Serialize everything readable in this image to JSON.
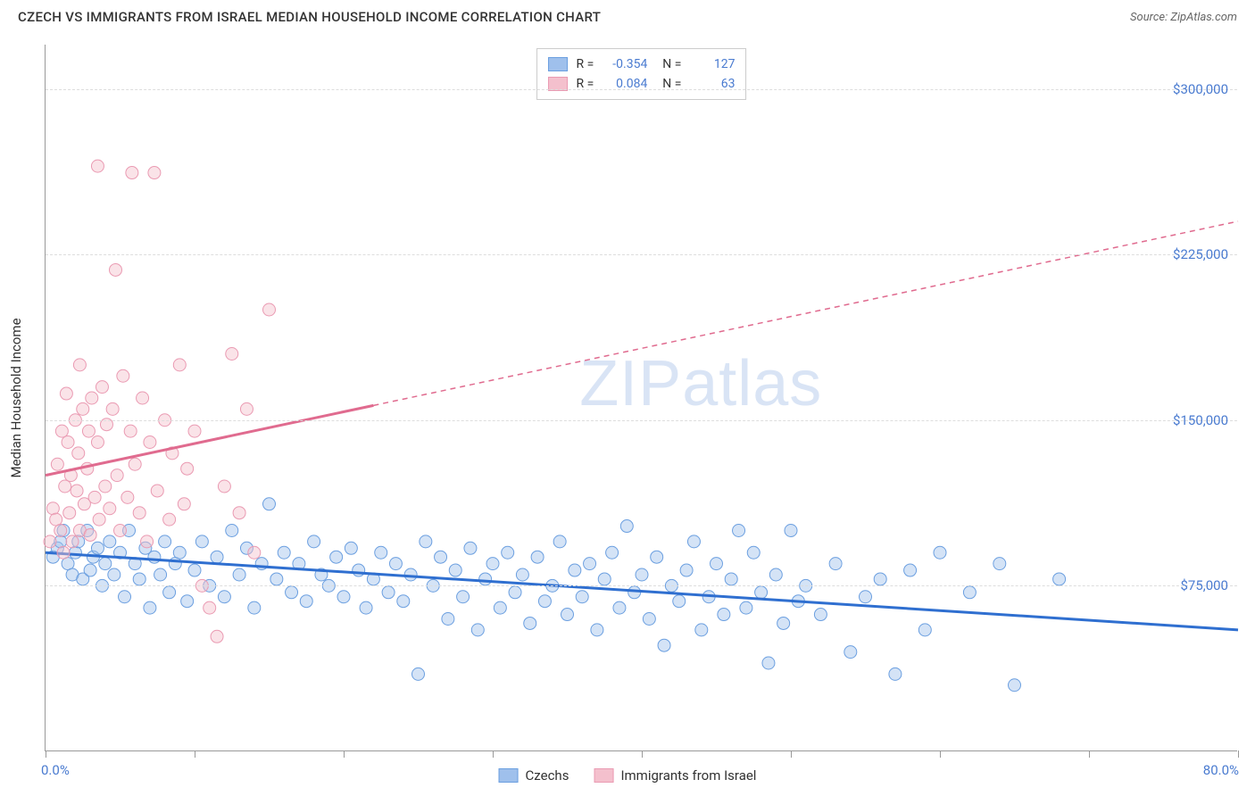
{
  "title": "CZECH VS IMMIGRANTS FROM ISRAEL MEDIAN HOUSEHOLD INCOME CORRELATION CHART",
  "source_label": "Source: ZipAtlas.com",
  "yaxis_title": "Median Household Income",
  "watermark": "ZIPatlas",
  "chart": {
    "type": "scatter",
    "xlim": [
      0,
      80
    ],
    "ylim": [
      0,
      320000
    ],
    "xlabel_min": "0.0%",
    "xlabel_max": "80.0%",
    "xtick_positions": [
      0,
      10,
      20,
      30,
      40,
      50,
      60,
      70,
      80
    ],
    "yticks": [
      {
        "v": 75000,
        "label": "$75,000"
      },
      {
        "v": 150000,
        "label": "$150,000"
      },
      {
        "v": 225000,
        "label": "$225,000"
      },
      {
        "v": 300000,
        "label": "$300,000"
      }
    ],
    "grid_color": "#dddddd",
    "background_color": "#ffffff",
    "marker_radius": 7,
    "marker_opacity": 0.45,
    "line_width": 3,
    "series": [
      {
        "name": "Czechs",
        "fill_color": "#9fc0ec",
        "stroke_color": "#6b9fe0",
        "line_color": "#2f6fd0",
        "R": "-0.354",
        "N": "127",
        "regression": {
          "x1": 0,
          "y1": 90000,
          "x2": 80,
          "y2": 55000
        },
        "points": [
          [
            0.5,
            88000
          ],
          [
            0.8,
            92000
          ],
          [
            1.0,
            95000
          ],
          [
            1.2,
            100000
          ],
          [
            1.5,
            85000
          ],
          [
            1.8,
            80000
          ],
          [
            2.0,
            90000
          ],
          [
            2.2,
            95000
          ],
          [
            2.5,
            78000
          ],
          [
            2.8,
            100000
          ],
          [
            3.0,
            82000
          ],
          [
            3.2,
            88000
          ],
          [
            3.5,
            92000
          ],
          [
            3.8,
            75000
          ],
          [
            4.0,
            85000
          ],
          [
            4.3,
            95000
          ],
          [
            4.6,
            80000
          ],
          [
            5.0,
            90000
          ],
          [
            5.3,
            70000
          ],
          [
            5.6,
            100000
          ],
          [
            6.0,
            85000
          ],
          [
            6.3,
            78000
          ],
          [
            6.7,
            92000
          ],
          [
            7.0,
            65000
          ],
          [
            7.3,
            88000
          ],
          [
            7.7,
            80000
          ],
          [
            8.0,
            95000
          ],
          [
            8.3,
            72000
          ],
          [
            8.7,
            85000
          ],
          [
            9.0,
            90000
          ],
          [
            9.5,
            68000
          ],
          [
            10.0,
            82000
          ],
          [
            10.5,
            95000
          ],
          [
            11.0,
            75000
          ],
          [
            11.5,
            88000
          ],
          [
            12.0,
            70000
          ],
          [
            12.5,
            100000
          ],
          [
            13.0,
            80000
          ],
          [
            13.5,
            92000
          ],
          [
            14.0,
            65000
          ],
          [
            14.5,
            85000
          ],
          [
            15.0,
            112000
          ],
          [
            15.5,
            78000
          ],
          [
            16.0,
            90000
          ],
          [
            16.5,
            72000
          ],
          [
            17.0,
            85000
          ],
          [
            17.5,
            68000
          ],
          [
            18.0,
            95000
          ],
          [
            18.5,
            80000
          ],
          [
            19.0,
            75000
          ],
          [
            19.5,
            88000
          ],
          [
            20.0,
            70000
          ],
          [
            20.5,
            92000
          ],
          [
            21.0,
            82000
          ],
          [
            21.5,
            65000
          ],
          [
            22.0,
            78000
          ],
          [
            22.5,
            90000
          ],
          [
            23.0,
            72000
          ],
          [
            23.5,
            85000
          ],
          [
            24.0,
            68000
          ],
          [
            24.5,
            80000
          ],
          [
            25.0,
            35000
          ],
          [
            25.5,
            95000
          ],
          [
            26.0,
            75000
          ],
          [
            26.5,
            88000
          ],
          [
            27.0,
            60000
          ],
          [
            27.5,
            82000
          ],
          [
            28.0,
            70000
          ],
          [
            28.5,
            92000
          ],
          [
            29.0,
            55000
          ],
          [
            29.5,
            78000
          ],
          [
            30.0,
            85000
          ],
          [
            30.5,
            65000
          ],
          [
            31.0,
            90000
          ],
          [
            31.5,
            72000
          ],
          [
            32.0,
            80000
          ],
          [
            32.5,
            58000
          ],
          [
            33.0,
            88000
          ],
          [
            33.5,
            68000
          ],
          [
            34.0,
            75000
          ],
          [
            34.5,
            95000
          ],
          [
            35.0,
            62000
          ],
          [
            35.5,
            82000
          ],
          [
            36.0,
            70000
          ],
          [
            36.5,
            85000
          ],
          [
            37.0,
            55000
          ],
          [
            37.5,
            78000
          ],
          [
            38.0,
            90000
          ],
          [
            38.5,
            65000
          ],
          [
            39.0,
            102000
          ],
          [
            39.5,
            72000
          ],
          [
            40.0,
            80000
          ],
          [
            40.5,
            60000
          ],
          [
            41.0,
            88000
          ],
          [
            41.5,
            48000
          ],
          [
            42.0,
            75000
          ],
          [
            42.5,
            68000
          ],
          [
            43.0,
            82000
          ],
          [
            43.5,
            95000
          ],
          [
            44.0,
            55000
          ],
          [
            44.5,
            70000
          ],
          [
            45.0,
            85000
          ],
          [
            45.5,
            62000
          ],
          [
            46.0,
            78000
          ],
          [
            46.5,
            100000
          ],
          [
            47.0,
            65000
          ],
          [
            47.5,
            90000
          ],
          [
            48.0,
            72000
          ],
          [
            48.5,
            40000
          ],
          [
            49.0,
            80000
          ],
          [
            49.5,
            58000
          ],
          [
            50.0,
            100000
          ],
          [
            50.5,
            68000
          ],
          [
            51.0,
            75000
          ],
          [
            52.0,
            62000
          ],
          [
            53.0,
            85000
          ],
          [
            54.0,
            45000
          ],
          [
            55.0,
            70000
          ],
          [
            56.0,
            78000
          ],
          [
            57.0,
            35000
          ],
          [
            58.0,
            82000
          ],
          [
            59.0,
            55000
          ],
          [
            60.0,
            90000
          ],
          [
            62.0,
            72000
          ],
          [
            64.0,
            85000
          ],
          [
            65.0,
            30000
          ],
          [
            68.0,
            78000
          ]
        ]
      },
      {
        "name": "Immigrants from Israel",
        "fill_color": "#f4c0cd",
        "stroke_color": "#ea9ab2",
        "line_color": "#e06b8f",
        "R": "0.084",
        "N": "63",
        "regression": {
          "x1": 0,
          "y1": 125000,
          "x2": 80,
          "y2": 240000
        },
        "regression_solid_until": 22,
        "points": [
          [
            0.3,
            95000
          ],
          [
            0.5,
            110000
          ],
          [
            0.7,
            105000
          ],
          [
            0.8,
            130000
          ],
          [
            1.0,
            100000
          ],
          [
            1.1,
            145000
          ],
          [
            1.2,
            90000
          ],
          [
            1.3,
            120000
          ],
          [
            1.5,
            140000
          ],
          [
            1.6,
            108000
          ],
          [
            1.7,
            125000
          ],
          [
            1.8,
            95000
          ],
          [
            2.0,
            150000
          ],
          [
            2.1,
            118000
          ],
          [
            2.2,
            135000
          ],
          [
            2.3,
            100000
          ],
          [
            2.5,
            155000
          ],
          [
            2.6,
            112000
          ],
          [
            2.8,
            128000
          ],
          [
            2.9,
            145000
          ],
          [
            3.0,
            98000
          ],
          [
            3.1,
            160000
          ],
          [
            3.3,
            115000
          ],
          [
            3.5,
            140000
          ],
          [
            3.6,
            105000
          ],
          [
            3.8,
            165000
          ],
          [
            4.0,
            120000
          ],
          [
            4.1,
            148000
          ],
          [
            4.3,
            110000
          ],
          [
            4.5,
            155000
          ],
          [
            4.7,
            218000
          ],
          [
            4.8,
            125000
          ],
          [
            5.0,
            100000
          ],
          [
            5.2,
            170000
          ],
          [
            5.5,
            115000
          ],
          [
            5.7,
            145000
          ],
          [
            6.0,
            130000
          ],
          [
            6.3,
            108000
          ],
          [
            6.5,
            160000
          ],
          [
            6.8,
            95000
          ],
          [
            7.0,
            140000
          ],
          [
            7.3,
            262000
          ],
          [
            7.5,
            118000
          ],
          [
            8.0,
            150000
          ],
          [
            8.3,
            105000
          ],
          [
            8.5,
            135000
          ],
          [
            9.0,
            175000
          ],
          [
            9.3,
            112000
          ],
          [
            9.5,
            128000
          ],
          [
            10.0,
            145000
          ],
          [
            10.5,
            75000
          ],
          [
            11.0,
            65000
          ],
          [
            11.5,
            52000
          ],
          [
            12.0,
            120000
          ],
          [
            12.5,
            180000
          ],
          [
            13.0,
            108000
          ],
          [
            13.5,
            155000
          ],
          [
            14.0,
            90000
          ],
          [
            15.0,
            200000
          ],
          [
            3.5,
            265000
          ],
          [
            5.8,
            262000
          ],
          [
            2.3,
            175000
          ],
          [
            1.4,
            162000
          ]
        ]
      }
    ]
  },
  "legend_bottom": [
    {
      "label": "Czechs",
      "fill": "#9fc0ec",
      "stroke": "#6b9fe0"
    },
    {
      "label": "Immigrants from Israel",
      "fill": "#f4c0cd",
      "stroke": "#ea9ab2"
    }
  ]
}
